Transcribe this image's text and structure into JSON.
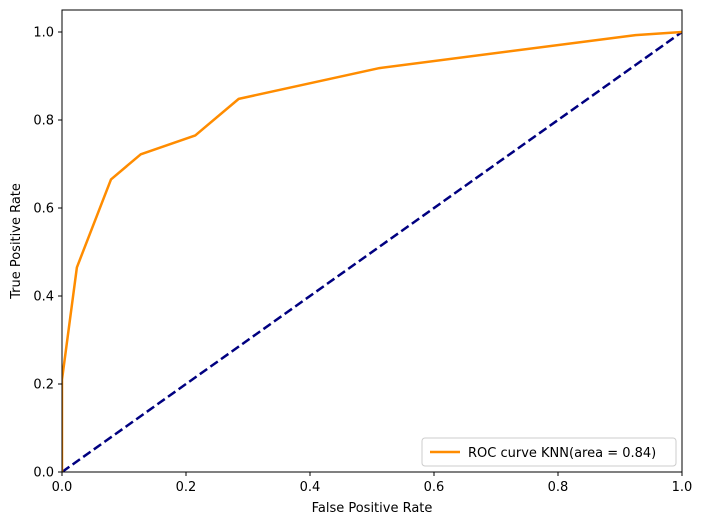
{
  "chart_data": {
    "type": "line",
    "xlabel": "False Positive Rate",
    "ylabel": "True Positive Rate",
    "xlim": [
      0.0,
      1.0
    ],
    "ylim": [
      0.0,
      1.05
    ],
    "x_ticks": [
      "0.0",
      "0.2",
      "0.4",
      "0.6",
      "0.8",
      "1.0"
    ],
    "y_ticks": [
      "0.0",
      "0.2",
      "0.4",
      "0.6",
      "0.8",
      "1.0"
    ],
    "grid": false,
    "legend_position": "lower-right",
    "series": [
      {
        "name": "ROC curve KNN(area = 0.84)",
        "color": "#ff8c00",
        "style": "solid",
        "x": [
          0.0,
          0.0,
          0.024,
          0.079,
          0.127,
          0.215,
          0.285,
          0.512,
          0.925,
          1.0
        ],
        "y": [
          0.0,
          0.21,
          0.465,
          0.665,
          0.722,
          0.765,
          0.848,
          0.918,
          0.993,
          1.0
        ]
      },
      {
        "name": "",
        "color": "#000080",
        "style": "dashed",
        "x": [
          0.0,
          1.0
        ],
        "y": [
          0.0,
          1.0
        ]
      }
    ]
  }
}
